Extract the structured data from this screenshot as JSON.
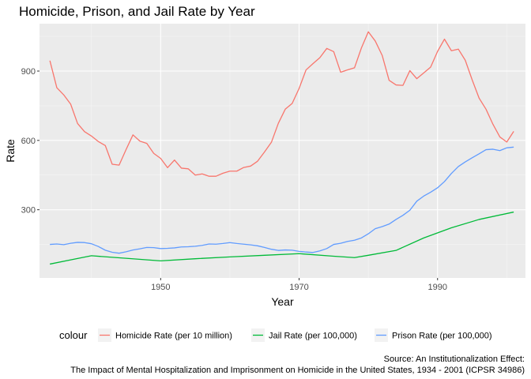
{
  "chart_data": {
    "type": "line",
    "title": "Homicide, Prison, and Jail Rate by Year",
    "xlabel": "Year",
    "ylabel": "Rate",
    "xlim": [
      1932.5,
      2002.7
    ],
    "ylim": [
      5,
      1105
    ],
    "x_ticks": [
      1950,
      1970,
      1990
    ],
    "y_ticks": [
      300,
      600,
      900
    ],
    "grid": true,
    "legend_position": "bottom",
    "legend_title": "colour",
    "caption": [
      "Source: An Institutionalization Effect:",
      "The Impact of Mental Hospitalization and Imprisonment on Homicide in the United States, 1934 - 2001 (ICPSR 34986)"
    ],
    "series": [
      {
        "name": "Homicide Rate (per 10 million)",
        "color": "#F8766D",
        "x": [
          1934,
          1935,
          1936,
          1937,
          1938,
          1939,
          1940,
          1941,
          1942,
          1943,
          1944,
          1945,
          1946,
          1947,
          1948,
          1949,
          1950,
          1951,
          1952,
          1953,
          1954,
          1955,
          1956,
          1957,
          1958,
          1959,
          1960,
          1961,
          1962,
          1963,
          1964,
          1965,
          1966,
          1967,
          1968,
          1969,
          1970,
          1971,
          1972,
          1973,
          1974,
          1975,
          1976,
          1977,
          1978,
          1979,
          1980,
          1981,
          1982,
          1983,
          1984,
          1985,
          1986,
          1987,
          1988,
          1989,
          1990,
          1991,
          1992,
          1993,
          1994,
          1995,
          1996,
          1997,
          1998,
          1999,
          2000,
          2001
        ],
        "y": [
          945,
          828,
          797,
          757,
          673,
          638,
          619,
          595,
          578,
          497,
          493,
          560,
          624,
          597,
          587,
          544,
          522,
          482,
          515,
          480,
          477,
          450,
          455,
          445,
          445,
          458,
          467,
          467,
          483,
          489,
          510,
          550,
          592,
          674,
          735,
          760,
          825,
          905,
          932,
          958,
          998,
          984,
          895,
          905,
          914,
          1000,
          1070,
          1030,
          968,
          860,
          840,
          838,
          902,
          867,
          892,
          917,
          985,
          1038,
          988,
          995,
          947,
          862,
          783,
          735,
          670,
          615,
          593,
          639
        ]
      },
      {
        "name": "Jail Rate (per 100,000)",
        "color": "#00BA38",
        "x": [
          1934,
          1937,
          1940,
          1945,
          1950,
          1955,
          1960,
          1965,
          1970,
          1975,
          1978,
          1980,
          1984,
          1988,
          1992,
          1996,
          2001
        ],
        "y": [
          65,
          83,
          101,
          90,
          79,
          88,
          96,
          103,
          110,
          99,
          93,
          103,
          124,
          178,
          222,
          258,
          290
        ]
      },
      {
        "name": "Prison Rate (per 100,000)",
        "color": "#619CFF",
        "x": [
          1934,
          1935,
          1936,
          1937,
          1938,
          1939,
          1940,
          1941,
          1942,
          1943,
          1944,
          1945,
          1946,
          1947,
          1948,
          1949,
          1950,
          1951,
          1952,
          1953,
          1954,
          1955,
          1956,
          1957,
          1958,
          1959,
          1960,
          1961,
          1962,
          1963,
          1964,
          1965,
          1966,
          1967,
          1968,
          1969,
          1970,
          1971,
          1972,
          1973,
          1974,
          1975,
          1976,
          1977,
          1978,
          1979,
          1980,
          1981,
          1982,
          1983,
          1984,
          1985,
          1986,
          1987,
          1988,
          1989,
          1990,
          1991,
          1992,
          1993,
          1994,
          1995,
          1996,
          1997,
          1998,
          1999,
          2000,
          2001
        ],
        "y": [
          150,
          152,
          149,
          155,
          159,
          158,
          153,
          141,
          125,
          116,
          112,
          118,
          126,
          131,
          137,
          136,
          132,
          133,
          135,
          139,
          140,
          142,
          146,
          152,
          151,
          154,
          158,
          154,
          151,
          148,
          144,
          137,
          129,
          124,
          126,
          125,
          120,
          117,
          115,
          122,
          132,
          150,
          155,
          163,
          168,
          178,
          196,
          218,
          227,
          238,
          258,
          276,
          298,
          337,
          359,
          376,
          395,
          422,
          457,
          487,
          507,
          525,
          542,
          560,
          562,
          556,
          568,
          571
        ]
      }
    ]
  }
}
